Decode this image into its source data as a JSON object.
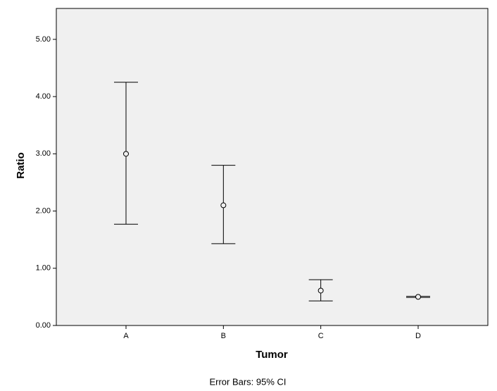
{
  "chart_data": {
    "type": "errorbar",
    "x_label": "Tumor",
    "y_label": "Ratio",
    "footnote": "Error Bars: 95% CI",
    "categories": [
      "A",
      "B",
      "C",
      "D"
    ],
    "series": [
      {
        "color": "#000000",
        "values": [
          3.0,
          2.1,
          0.61,
          0.5
        ],
        "low": [
          1.77,
          1.43,
          0.43,
          0.49
        ],
        "high": [
          4.25,
          2.8,
          0.8,
          0.51
        ]
      }
    ],
    "ylim": [
      0,
      5.54
    ],
    "yticks": [
      {
        "value": 0,
        "label": "0.00"
      },
      {
        "value": 1,
        "label": "1.00"
      },
      {
        "value": 2,
        "label": "2.00"
      },
      {
        "value": 3,
        "label": "3.00"
      },
      {
        "value": 4,
        "label": "4.00"
      },
      {
        "value": 5,
        "label": "5.00"
      }
    ],
    "background": "#f0f0f0"
  }
}
